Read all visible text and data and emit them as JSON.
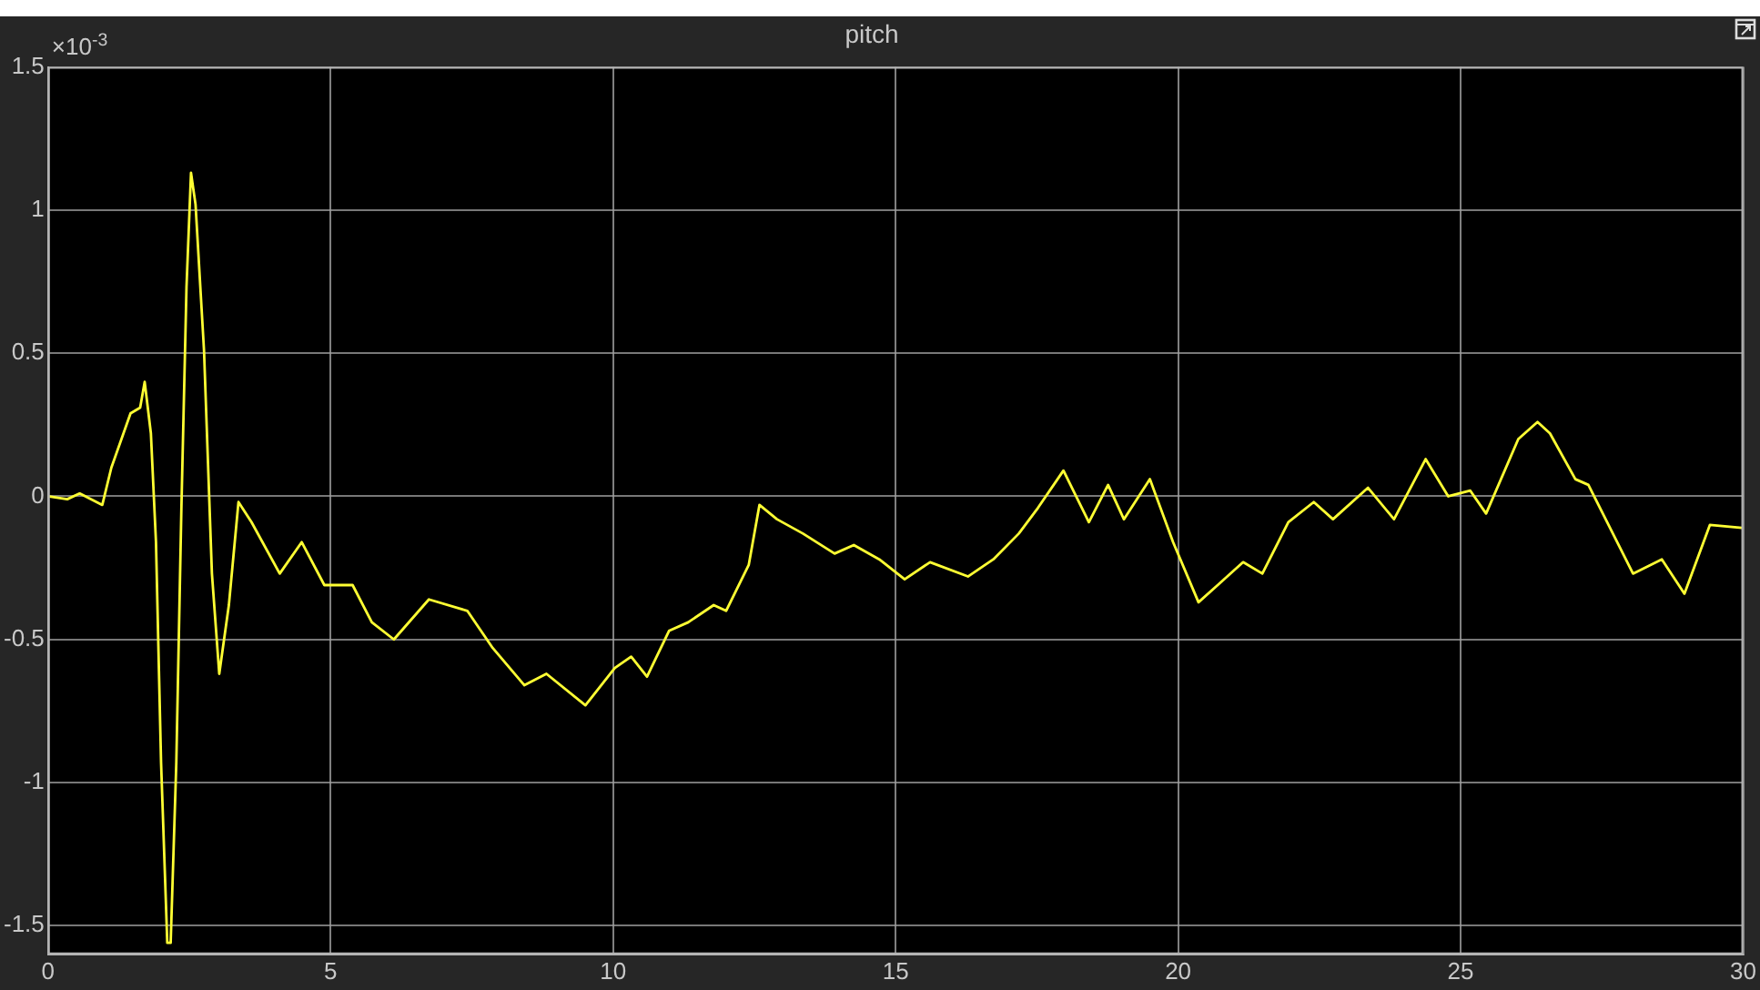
{
  "chart_data": {
    "type": "line",
    "title": "pitch",
    "annotations": [
      "×10$^{-3}$"
    ],
    "grid": true,
    "legend": false,
    "marker": "none",
    "line_style": "solid",
    "xlim": [
      0,
      30
    ],
    "xticks": [
      0,
      5,
      10,
      15,
      20,
      25,
      30
    ],
    "ylim": [
      -1.6,
      1.5
    ],
    "yticks": [
      -1.5,
      -1,
      -0.5,
      0,
      0.5,
      1,
      1.5
    ],
    "series": [
      {
        "color": "#ffff33",
        "x": [
          0,
          0.34,
          0.56,
          0.96,
          1.12,
          1.46,
          1.63,
          1.71,
          1.82,
          1.91,
          2.0,
          2.11,
          2.17,
          2.27,
          2.36,
          2.45,
          2.53,
          2.61,
          2.76,
          2.9,
          3.03,
          3.2,
          3.37,
          3.6,
          4.1,
          4.49,
          4.89,
          5.39,
          5.73,
          6.12,
          6.74,
          7.42,
          7.87,
          8.43,
          8.82,
          9.51,
          10.03,
          10.32,
          10.6,
          10.99,
          11.33,
          11.78,
          12.0,
          12.4,
          12.59,
          12.9,
          13.36,
          13.92,
          14.26,
          14.71,
          15.16,
          15.61,
          16.28,
          16.73,
          17.18,
          17.52,
          17.97,
          18.42,
          18.76,
          19.04,
          19.5,
          19.91,
          20.36,
          20.7,
          21.15,
          21.49,
          21.95,
          22.4,
          22.74,
          23.36,
          23.82,
          24.38,
          24.78,
          25.17,
          25.45,
          26.02,
          26.36,
          26.58,
          27.03,
          27.26,
          28.05,
          28.56,
          28.96,
          29.41,
          29.98
        ],
        "values": [
          0,
          -0.01,
          0.01,
          -0.03,
          0.1,
          0.29,
          0.31,
          0.4,
          0.22,
          -0.16,
          -0.93,
          -1.56,
          -1.56,
          -0.93,
          -0.04,
          0.73,
          1.13,
          1.02,
          0.51,
          -0.27,
          -0.62,
          -0.38,
          -0.02,
          -0.09,
          -0.27,
          -0.16,
          -0.31,
          -0.31,
          -0.44,
          -0.5,
          -0.36,
          -0.4,
          -0.53,
          -0.66,
          -0.62,
          -0.73,
          -0.6,
          -0.56,
          -0.63,
          -0.47,
          -0.44,
          -0.38,
          -0.4,
          -0.24,
          -0.03,
          -0.08,
          -0.13,
          -0.2,
          -0.17,
          -0.22,
          -0.29,
          -0.23,
          -0.28,
          -0.22,
          -0.13,
          -0.04,
          0.09,
          -0.09,
          0.04,
          -0.08,
          0.06,
          -0.16,
          -0.37,
          -0.31,
          -0.23,
          -0.27,
          -0.09,
          -0.02,
          -0.08,
          0.03,
          -0.08,
          0.13,
          0,
          0.02,
          -0.06,
          0.2,
          0.26,
          0.22,
          0.06,
          0.04,
          -0.27,
          -0.22,
          -0.34,
          -0.1,
          -0.11
        ]
      }
    ]
  }
}
